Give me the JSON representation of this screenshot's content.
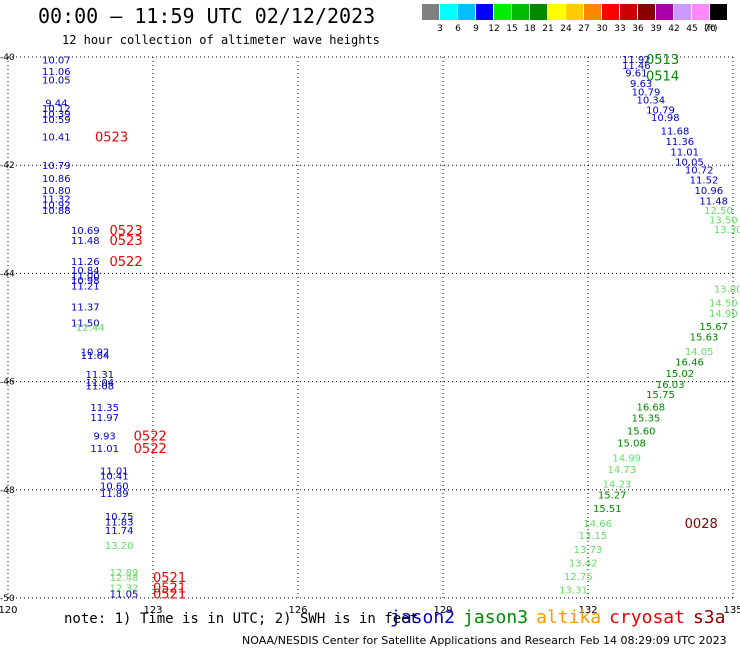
{
  "header": {
    "title": "00:00 – 11:59 UTC 02/12/2023",
    "subtitle": "12 hour collection of altimeter wave heights"
  },
  "colorbar": {
    "labels": [
      "3",
      "6",
      "9",
      "12",
      "15",
      "18",
      "21",
      "24",
      "27",
      "30",
      "33",
      "36",
      "39",
      "42",
      "45",
      "70"
    ],
    "unit": "(ft)",
    "colors": [
      "#7f7f7f",
      "#00ffff",
      "#00bfff",
      "#0000ff",
      "#00ee00",
      "#00bb00",
      "#008800",
      "#ffff00",
      "#ffcc00",
      "#ff8800",
      "#ff0000",
      "#cc0000",
      "#880000",
      "#aa00aa",
      "#cc99ff",
      "#ff88ff",
      "#000000"
    ]
  },
  "footer": {
    "note": "note: 1) Time is in UTC; 2) SWH is in feet",
    "satellites": [
      {
        "name": "jason2",
        "color": "#0000cc"
      },
      {
        "name": "jason3",
        "color": "#008800"
      },
      {
        "name": "altika",
        "color": "#ff9900"
      },
      {
        "name": "cryosat",
        "color": "#ee0000"
      },
      {
        "name": "s3a",
        "color": "#880000"
      }
    ],
    "credit": "NOAA/NESDIS Center for Satellite Applications and Research",
    "timestamp": "Feb 14 08:29:09 UTC 2023"
  },
  "chart_data": {
    "type": "scatter",
    "xlim": [
      120,
      135
    ],
    "ylim": [
      -50,
      -40
    ],
    "x_ticks": [
      "120",
      "123",
      "126",
      "129",
      "132",
      "135"
    ],
    "y_ticks": [
      "-40",
      "-42",
      "-44",
      "-46",
      "-48",
      "-50"
    ],
    "grid": "dotted",
    "series_colors": {
      "jason2": "#0000cc",
      "jason3": "#008800",
      "s3a_light": "#66dd66",
      "cryosat": "#ee0000",
      "s3a": "#880000"
    },
    "points": [
      {
        "x": 121.0,
        "y": -40.05,
        "label": "10.07",
        "s": "jason2"
      },
      {
        "x": 121.0,
        "y": -40.26,
        "label": "11.06",
        "s": "jason2"
      },
      {
        "x": 121.0,
        "y": -40.42,
        "label": "10.05",
        "s": "jason2"
      },
      {
        "x": 121.0,
        "y": -40.84,
        "label": "9.44",
        "s": "jason2"
      },
      {
        "x": 121.0,
        "y": -40.94,
        "label": "10.12",
        "s": "jason2"
      },
      {
        "x": 121.0,
        "y": -41.04,
        "label": "10.39",
        "s": "jason2"
      },
      {
        "x": 121.0,
        "y": -41.15,
        "label": "10.59",
        "s": "jason2"
      },
      {
        "x": 121.0,
        "y": -41.47,
        "label": "10.41",
        "s": "jason2"
      },
      {
        "x": 121.0,
        "y": -42.0,
        "label": "10.79",
        "s": "jason2"
      },
      {
        "x": 121.0,
        "y": -42.24,
        "label": "10.86",
        "s": "jason2"
      },
      {
        "x": 121.0,
        "y": -42.46,
        "label": "10.80",
        "s": "jason2"
      },
      {
        "x": 121.0,
        "y": -42.62,
        "label": "11.32",
        "s": "jason2"
      },
      {
        "x": 121.0,
        "y": -42.73,
        "label": "10.92",
        "s": "jason2"
      },
      {
        "x": 121.0,
        "y": -42.83,
        "label": "10.88",
        "s": "jason2"
      },
      {
        "x": 121.6,
        "y": -43.2,
        "label": "10.69",
        "s": "jason2"
      },
      {
        "x": 121.6,
        "y": -43.38,
        "label": "11.48",
        "s": "jason2"
      },
      {
        "x": 121.6,
        "y": -43.77,
        "label": "11.26",
        "s": "jason2"
      },
      {
        "x": 121.6,
        "y": -43.94,
        "label": "10.84",
        "s": "jason2"
      },
      {
        "x": 121.6,
        "y": -44.04,
        "label": "11.00",
        "s": "jason2"
      },
      {
        "x": 121.6,
        "y": -44.12,
        "label": "10.98",
        "s": "jason2"
      },
      {
        "x": 121.6,
        "y": -44.22,
        "label": "11.21",
        "s": "jason2"
      },
      {
        "x": 121.6,
        "y": -44.61,
        "label": "11.37",
        "s": "jason2"
      },
      {
        "x": 121.6,
        "y": -44.91,
        "label": "11.50",
        "s": "jason2"
      },
      {
        "x": 121.7,
        "y": -44.99,
        "label": "12.44",
        "s": "s3a_light"
      },
      {
        "x": 121.8,
        "y": -45.44,
        "label": "10.92",
        "s": "jason2"
      },
      {
        "x": 121.8,
        "y": -45.51,
        "label": "11.64",
        "s": "jason2"
      },
      {
        "x": 121.9,
        "y": -45.86,
        "label": "11.31",
        "s": "jason2"
      },
      {
        "x": 121.9,
        "y": -46.01,
        "label": "11.04",
        "s": "jason2"
      },
      {
        "x": 121.9,
        "y": -46.07,
        "label": "11.08",
        "s": "jason2"
      },
      {
        "x": 122.0,
        "y": -46.47,
        "label": "11.35",
        "s": "jason2"
      },
      {
        "x": 122.0,
        "y": -46.65,
        "label": "11.97",
        "s": "jason2"
      },
      {
        "x": 122.0,
        "y": -47.0,
        "label": "9.93",
        "s": "jason2"
      },
      {
        "x": 122.0,
        "y": -47.23,
        "label": "11.01",
        "s": "jason2"
      },
      {
        "x": 122.2,
        "y": -47.64,
        "label": "11.01",
        "s": "jason2"
      },
      {
        "x": 122.2,
        "y": -47.74,
        "label": "10.41",
        "s": "jason2"
      },
      {
        "x": 122.2,
        "y": -47.92,
        "label": "10.60",
        "s": "jason2"
      },
      {
        "x": 122.2,
        "y": -48.06,
        "label": "11.89",
        "s": "jason2"
      },
      {
        "x": 122.3,
        "y": -48.48,
        "label": "10.75",
        "s": "jason2"
      },
      {
        "x": 122.3,
        "y": -48.59,
        "label": "11.83",
        "s": "jason2"
      },
      {
        "x": 122.3,
        "y": -48.74,
        "label": "11.74",
        "s": "jason2"
      },
      {
        "x": 122.3,
        "y": -49.02,
        "label": "13.20",
        "s": "s3a_light"
      },
      {
        "x": 122.4,
        "y": -49.52,
        "label": "12.89",
        "s": "s3a_light"
      },
      {
        "x": 122.4,
        "y": -49.61,
        "label": "12.48",
        "s": "s3a_light"
      },
      {
        "x": 122.4,
        "y": -49.81,
        "label": "12.32",
        "s": "s3a_light"
      },
      {
        "x": 122.4,
        "y": -49.92,
        "label": "11.05",
        "s": "jason2"
      },
      {
        "x": 133.0,
        "y": -40.04,
        "label": "11.92",
        "s": "jason2"
      },
      {
        "x": 133.0,
        "y": -40.15,
        "label": "11.46",
        "s": "jason2"
      },
      {
        "x": 133.0,
        "y": -40.29,
        "label": "9.61",
        "s": "jason2"
      },
      {
        "x": 133.1,
        "y": -40.48,
        "label": "9.63",
        "s": "jason2"
      },
      {
        "x": 133.2,
        "y": -40.64,
        "label": "10.79",
        "s": "jason2"
      },
      {
        "x": 133.3,
        "y": -40.79,
        "label": "10.34",
        "s": "jason2"
      },
      {
        "x": 133.5,
        "y": -40.97,
        "label": "10.79",
        "s": "jason2"
      },
      {
        "x": 133.6,
        "y": -41.11,
        "label": "10.98",
        "s": "jason2"
      },
      {
        "x": 133.8,
        "y": -41.36,
        "label": "11.68",
        "s": "jason2"
      },
      {
        "x": 133.9,
        "y": -41.55,
        "label": "11.36",
        "s": "jason2"
      },
      {
        "x": 134.0,
        "y": -41.75,
        "label": "11.01",
        "s": "jason2"
      },
      {
        "x": 134.1,
        "y": -41.93,
        "label": "10.05",
        "s": "jason2"
      },
      {
        "x": 134.3,
        "y": -42.08,
        "label": "10.72",
        "s": "jason2"
      },
      {
        "x": 134.4,
        "y": -42.26,
        "label": "11.52",
        "s": "jason2"
      },
      {
        "x": 134.5,
        "y": -42.46,
        "label": "10.96",
        "s": "jason2"
      },
      {
        "x": 134.6,
        "y": -42.65,
        "label": "11.48",
        "s": "jason2"
      },
      {
        "x": 134.7,
        "y": -42.83,
        "label": "12.50",
        "s": "s3a_light"
      },
      {
        "x": 134.8,
        "y": -43.0,
        "label": "13.50",
        "s": "s3a_light"
      },
      {
        "x": 134.9,
        "y": -43.18,
        "label": "13.30",
        "s": "s3a_light"
      },
      {
        "x": 134.9,
        "y": -44.28,
        "label": "13.00",
        "s": "s3a_light"
      },
      {
        "x": 134.8,
        "y": -44.54,
        "label": "14.50",
        "s": "s3a_light"
      },
      {
        "x": 134.8,
        "y": -44.73,
        "label": "14.90",
        "s": "s3a_light"
      },
      {
        "x": 134.6,
        "y": -44.97,
        "label": "15.67",
        "s": "jason3"
      },
      {
        "x": 134.4,
        "y": -45.17,
        "label": "15.63",
        "s": "jason3"
      },
      {
        "x": 134.3,
        "y": -45.43,
        "label": "14.05",
        "s": "s3a_light"
      },
      {
        "x": 134.1,
        "y": -45.63,
        "label": "16.46",
        "s": "jason3"
      },
      {
        "x": 133.9,
        "y": -45.84,
        "label": "15.02",
        "s": "jason3"
      },
      {
        "x": 133.7,
        "y": -46.04,
        "label": "16.03",
        "s": "jason3"
      },
      {
        "x": 133.5,
        "y": -46.23,
        "label": "15.75",
        "s": "jason3"
      },
      {
        "x": 133.3,
        "y": -46.46,
        "label": "16.68",
        "s": "jason3"
      },
      {
        "x": 133.2,
        "y": -46.66,
        "label": "15.35",
        "s": "jason3"
      },
      {
        "x": 133.1,
        "y": -46.9,
        "label": "15.60",
        "s": "jason3"
      },
      {
        "x": 132.9,
        "y": -47.13,
        "label": "15.08",
        "s": "jason3"
      },
      {
        "x": 132.8,
        "y": -47.4,
        "label": "14.99",
        "s": "s3a_light"
      },
      {
        "x": 132.7,
        "y": -47.62,
        "label": "14.73",
        "s": "s3a_light"
      },
      {
        "x": 132.6,
        "y": -47.88,
        "label": "14.23",
        "s": "s3a_light"
      },
      {
        "x": 132.5,
        "y": -48.09,
        "label": "15.27",
        "s": "jason3"
      },
      {
        "x": 132.4,
        "y": -48.34,
        "label": "15.51",
        "s": "jason3"
      },
      {
        "x": 132.2,
        "y": -48.61,
        "label": "14.66",
        "s": "s3a_light"
      },
      {
        "x": 132.1,
        "y": -48.84,
        "label": "13.15",
        "s": "s3a_light"
      },
      {
        "x": 132.0,
        "y": -49.09,
        "label": "13.73",
        "s": "s3a_light"
      },
      {
        "x": 131.9,
        "y": -49.34,
        "label": "13.42",
        "s": "s3a_light"
      },
      {
        "x": 131.8,
        "y": -49.59,
        "label": "12.75",
        "s": "s3a_light"
      },
      {
        "x": 131.7,
        "y": -49.84,
        "label": "13.31",
        "s": "s3a_light"
      }
    ],
    "time_tags": [
      {
        "x": 121.8,
        "y": -41.47,
        "label": "0523",
        "s": "cryosat"
      },
      {
        "x": 122.1,
        "y": -43.2,
        "label": "0523",
        "s": "cryosat"
      },
      {
        "x": 122.1,
        "y": -43.38,
        "label": "0523",
        "s": "cryosat"
      },
      {
        "x": 122.1,
        "y": -43.77,
        "label": "0522",
        "s": "cryosat"
      },
      {
        "x": 122.6,
        "y": -47.0,
        "label": "0522",
        "s": "cryosat"
      },
      {
        "x": 122.6,
        "y": -47.23,
        "label": "0522",
        "s": "cryosat"
      },
      {
        "x": 123.0,
        "y": -49.61,
        "label": "0521",
        "s": "cryosat"
      },
      {
        "x": 123.0,
        "y": -49.81,
        "label": "0521",
        "s": "cryosat"
      },
      {
        "x": 123.0,
        "y": -49.92,
        "label": "0521",
        "s": "cryosat"
      },
      {
        "x": 133.2,
        "y": -40.04,
        "label": "0513",
        "s": "jason3"
      },
      {
        "x": 133.2,
        "y": -40.34,
        "label": "0514",
        "s": "jason3"
      },
      {
        "x": 134.0,
        "y": -48.61,
        "label": "0028",
        "s": "s3a"
      }
    ]
  }
}
